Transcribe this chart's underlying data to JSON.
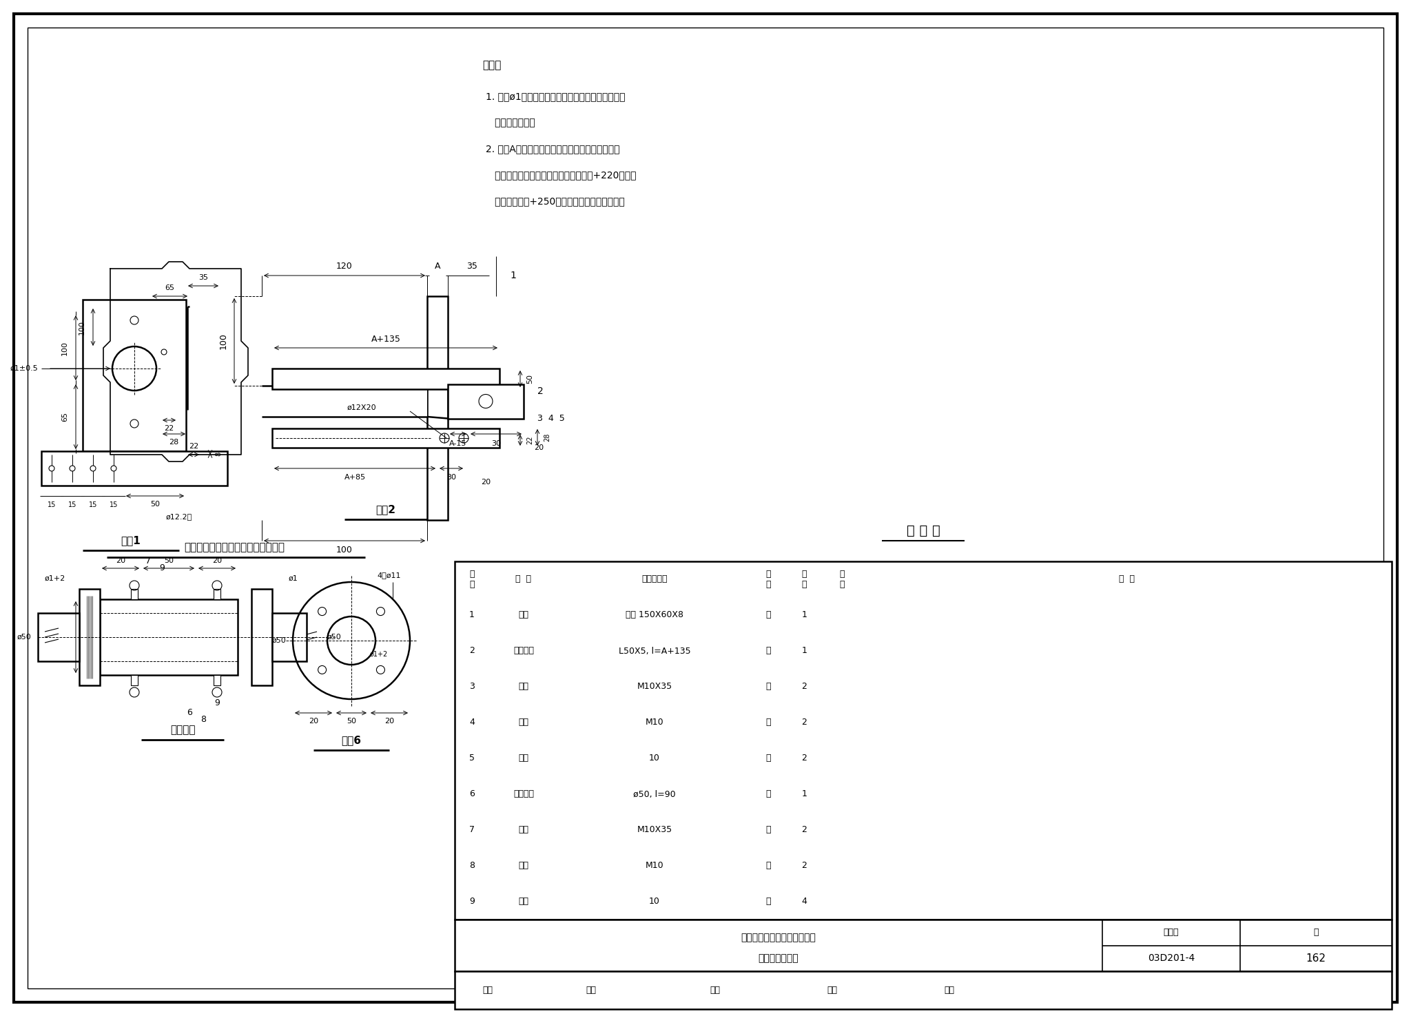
{
  "title": "03D201-4",
  "page": "162",
  "bg_color": "#ffffff",
  "table_title": "明 细 表",
  "table_headers": [
    "序\n号",
    "名  称",
    "型号及规格",
    "单\n位",
    "数\n量",
    "页\n次",
    "备  注"
  ],
  "table_rows": [
    [
      "1",
      "轴承",
      "钢板 150X60X8",
      "块",
      "1",
      "",
      ""
    ],
    [
      "2",
      "轴承支架",
      "L50X5, l=A+135",
      "根",
      "1",
      "",
      ""
    ],
    [
      "3",
      "螺栓",
      "M10X35",
      "个",
      "2",
      "",
      ""
    ],
    [
      "4",
      "螺母",
      "M10",
      "个",
      "2",
      "",
      ""
    ],
    [
      "5",
      "垫圈",
      "10",
      "个",
      "2",
      "",
      ""
    ],
    [
      "6",
      "轴连接套",
      "ø50, l=90",
      "根",
      "1",
      "",
      ""
    ],
    [
      "7",
      "螺钉",
      "M10X35",
      "个",
      "2",
      "",
      ""
    ],
    [
      "8",
      "螺母",
      "M10",
      "个",
      "2",
      "",
      ""
    ],
    [
      "9",
      "垫圈",
      "10",
      "个",
      "4",
      "",
      ""
    ]
  ],
  "bottom_text1": "隔离开关及负荷开关安装部件",
  "bottom_text2": "轴承及轴连接套",
  "caption_top": "隔离开关及负荷开关轴承在墙上安装",
  "notes_title": "说明：",
  "notes": [
    "1. 尺寸ø1为隔离开关或负荷开关轴的直径，按产品",
    "   实际尺寸决定。",
    "2. 尺寸A为隔离开关或负荷开关轴底座底边的距离",
    "   （在支架上安装时，负荷开关为该距离+220；隔离",
    "   开关为该距离+250）。按产品实际尺寸决定。"
  ],
  "label_part1": "零件1",
  "label_part2": "零件2",
  "label_part6": "零件6",
  "label_shaft": "轴连接套",
  "review_text": "审核              校对             制图              设计              审定"
}
